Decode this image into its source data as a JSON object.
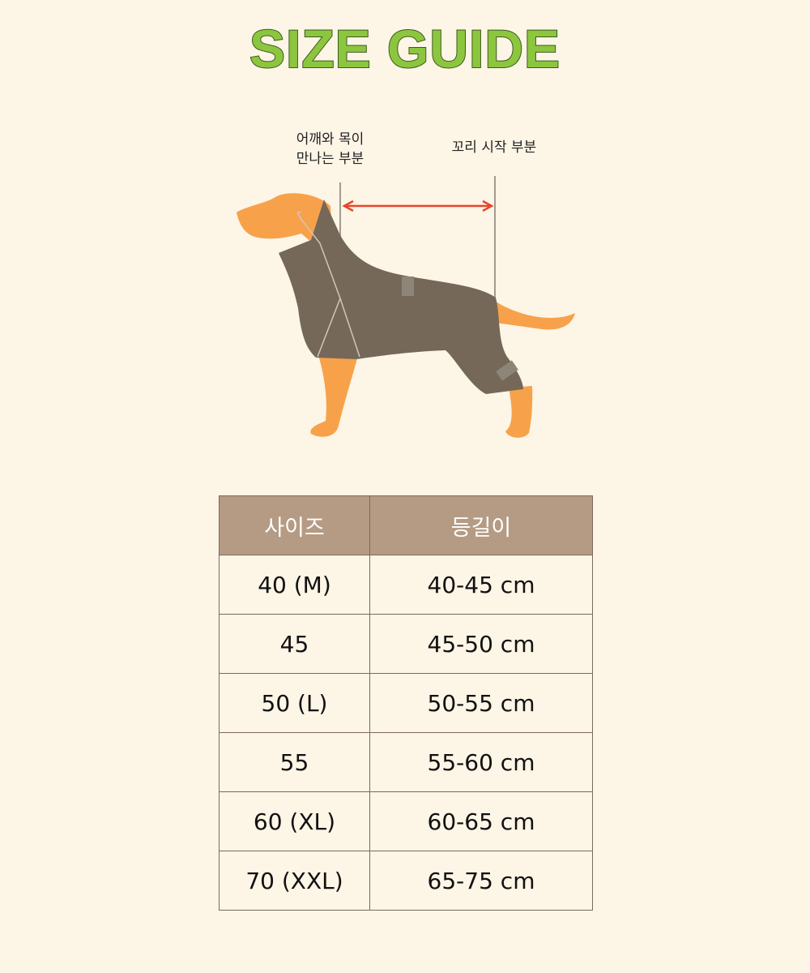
{
  "title": "SIZE GUIDE",
  "diagram": {
    "label_start_line1": "어깨와 목이",
    "label_start_line2": "만나는 부분",
    "label_end": "꼬리 시작 부분",
    "colors": {
      "dog": "#f7a24a",
      "coat": "#756858",
      "arrow": "#e8452a"
    }
  },
  "table": {
    "headers": [
      "사이즈",
      "등길이"
    ],
    "rows": [
      [
        "40 (M)",
        "40-45 cm"
      ],
      [
        "45",
        "45-50 cm"
      ],
      [
        "50 (L)",
        "50-55 cm"
      ],
      [
        "55",
        "55-60 cm"
      ],
      [
        "60 (XL)",
        "60-65 cm"
      ],
      [
        "70 (XXL)",
        "65-75 cm"
      ]
    ]
  }
}
